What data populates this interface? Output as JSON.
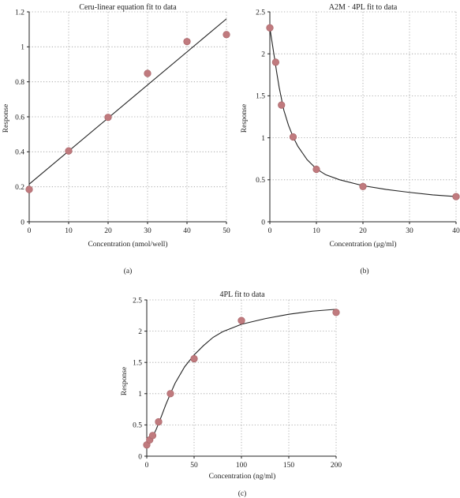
{
  "chart_data": [
    {
      "type": "scatter",
      "title": "Ceru-linear equation fit to data",
      "xlabel": "Concentration (nmol/well)",
      "ylabel": "Response",
      "panel_label": "(a)",
      "xlim": [
        0,
        50
      ],
      "ylim": [
        0,
        1.2
      ],
      "xticks": [
        0,
        10,
        20,
        30,
        40,
        50
      ],
      "yticks": [
        0,
        0.2,
        0.4,
        0.6,
        0.8,
        1,
        1.2
      ],
      "grid": true,
      "points": {
        "x": [
          0,
          10,
          20,
          30,
          40,
          50
        ],
        "y": [
          0.185,
          0.405,
          0.597,
          0.848,
          1.03,
          1.07
        ]
      },
      "fit": {
        "model": "linear",
        "x": [
          0,
          50
        ],
        "y": [
          0.215,
          1.16
        ]
      },
      "colors": {
        "marker": "#c07a7e",
        "line": "#222222"
      }
    },
    {
      "type": "scatter",
      "title": "A2M · 4PL fit to data",
      "xlabel": "Concentration (μg/ml)",
      "ylabel": "Response",
      "panel_label": "(b)",
      "xlim": [
        0,
        40
      ],
      "ylim": [
        0,
        2.5
      ],
      "xticks": [
        0,
        10,
        20,
        30,
        40
      ],
      "yticks": [
        0,
        0.5,
        1,
        1.5,
        2,
        2.5
      ],
      "grid": true,
      "points": {
        "x": [
          0,
          1.25,
          2.5,
          5,
          10,
          20,
          40
        ],
        "y": [
          2.31,
          1.9,
          1.39,
          1.01,
          0.625,
          0.42,
          0.3
        ]
      },
      "fit": {
        "model": "4pl",
        "x": [
          0,
          0.5,
          1,
          1.5,
          2,
          3,
          4,
          5,
          6,
          8,
          10,
          12,
          15,
          20,
          25,
          30,
          35,
          40
        ],
        "y": [
          2.31,
          2.13,
          1.95,
          1.77,
          1.6,
          1.33,
          1.15,
          1.01,
          0.9,
          0.74,
          0.63,
          0.56,
          0.5,
          0.43,
          0.385,
          0.35,
          0.32,
          0.3
        ]
      },
      "colors": {
        "marker": "#c07a7e",
        "line": "#222222"
      }
    },
    {
      "type": "scatter",
      "title": "4PL fit to data",
      "xlabel": "Concentration (ng/ml)",
      "ylabel": "Response",
      "panel_label": "(c)",
      "xlim": [
        0,
        200
      ],
      "ylim": [
        0,
        2.5
      ],
      "xticks": [
        0,
        50,
        100,
        150,
        200
      ],
      "yticks": [
        0,
        0.5,
        1,
        1.5,
        2,
        2.5
      ],
      "grid": true,
      "points": {
        "x": [
          0,
          3.125,
          6.25,
          12.5,
          25,
          50,
          100,
          200
        ],
        "y": [
          0.18,
          0.26,
          0.33,
          0.55,
          1.0,
          1.56,
          2.17,
          2.3
        ]
      },
      "fit": {
        "model": "4pl",
        "x": [
          0,
          5,
          10,
          15,
          20,
          25,
          30,
          40,
          50,
          60,
          70,
          80,
          100,
          125,
          150,
          175,
          200
        ],
        "y": [
          0.18,
          0.27,
          0.43,
          0.62,
          0.82,
          1.0,
          1.17,
          1.43,
          1.62,
          1.77,
          1.9,
          1.99,
          2.11,
          2.2,
          2.27,
          2.32,
          2.35
        ]
      },
      "colors": {
        "marker": "#c07a7e",
        "line": "#222222"
      }
    }
  ]
}
